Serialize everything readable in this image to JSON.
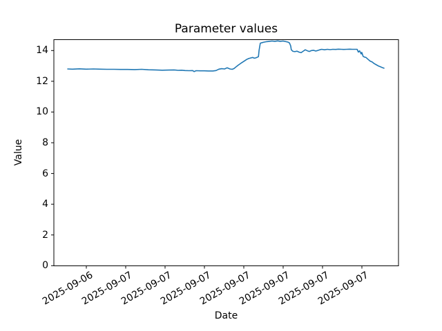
{
  "chart_data": {
    "type": "line",
    "title": "Parameter values",
    "xlabel": "Date",
    "ylabel": "Value",
    "x_tick_labels": [
      "2025-09-06",
      "2025-09-07",
      "2025-09-07",
      "2025-09-07",
      "2025-09-07",
      "2025-09-07",
      "2025-09-07",
      "2025-09-07"
    ],
    "y_tick_labels": [
      "0",
      "2",
      "4",
      "6",
      "8",
      "10",
      "12",
      "14"
    ],
    "ylim": [
      0,
      14.7
    ],
    "grid": false,
    "legend": "none",
    "series": [
      {
        "name": "parameter-values",
        "color": "#1f77b4",
        "points": [
          [
            0.0,
            12.8
          ],
          [
            0.015,
            12.79
          ],
          [
            0.037,
            12.81
          ],
          [
            0.059,
            12.79
          ],
          [
            0.081,
            12.8
          ],
          [
            0.103,
            12.79
          ],
          [
            0.124,
            12.78
          ],
          [
            0.146,
            12.78
          ],
          [
            0.168,
            12.77
          ],
          [
            0.19,
            12.77
          ],
          [
            0.212,
            12.76
          ],
          [
            0.234,
            12.78
          ],
          [
            0.255,
            12.75
          ],
          [
            0.277,
            12.74
          ],
          [
            0.299,
            12.72
          ],
          [
            0.321,
            12.73
          ],
          [
            0.336,
            12.74
          ],
          [
            0.349,
            12.71
          ],
          [
            0.36,
            12.72
          ],
          [
            0.371,
            12.7
          ],
          [
            0.384,
            12.69
          ],
          [
            0.395,
            12.7
          ],
          [
            0.4,
            12.63
          ],
          [
            0.406,
            12.69
          ],
          [
            0.419,
            12.68
          ],
          [
            0.432,
            12.68
          ],
          [
            0.445,
            12.67
          ],
          [
            0.459,
            12.67
          ],
          [
            0.469,
            12.7
          ],
          [
            0.478,
            12.79
          ],
          [
            0.487,
            12.82
          ],
          [
            0.496,
            12.8
          ],
          [
            0.504,
            12.88
          ],
          [
            0.513,
            12.8
          ],
          [
            0.52,
            12.78
          ],
          [
            0.526,
            12.83
          ],
          [
            0.533,
            12.95
          ],
          [
            0.539,
            13.05
          ],
          [
            0.548,
            13.18
          ],
          [
            0.557,
            13.3
          ],
          [
            0.566,
            13.42
          ],
          [
            0.572,
            13.48
          ],
          [
            0.579,
            13.52
          ],
          [
            0.585,
            13.55
          ],
          [
            0.59,
            13.5
          ],
          [
            0.594,
            13.52
          ],
          [
            0.598,
            13.55
          ],
          [
            0.603,
            13.6
          ],
          [
            0.605,
            14.0
          ],
          [
            0.609,
            14.48
          ],
          [
            0.616,
            14.52
          ],
          [
            0.622,
            14.55
          ],
          [
            0.629,
            14.58
          ],
          [
            0.638,
            14.6
          ],
          [
            0.646,
            14.62
          ],
          [
            0.655,
            14.6
          ],
          [
            0.664,
            14.63
          ],
          [
            0.672,
            14.6
          ],
          [
            0.681,
            14.62
          ],
          [
            0.69,
            14.58
          ],
          [
            0.696,
            14.55
          ],
          [
            0.701,
            14.5
          ],
          [
            0.705,
            14.3
          ],
          [
            0.707,
            14.05
          ],
          [
            0.712,
            13.95
          ],
          [
            0.718,
            13.93
          ],
          [
            0.725,
            13.96
          ],
          [
            0.731,
            13.9
          ],
          [
            0.738,
            13.86
          ],
          [
            0.744,
            13.95
          ],
          [
            0.751,
            14.05
          ],
          [
            0.758,
            13.98
          ],
          [
            0.764,
            13.94
          ],
          [
            0.771,
            14.0
          ],
          [
            0.777,
            14.02
          ],
          [
            0.784,
            13.97
          ],
          [
            0.79,
            14.0
          ],
          [
            0.797,
            14.05
          ],
          [
            0.803,
            14.08
          ],
          [
            0.812,
            14.05
          ],
          [
            0.821,
            14.08
          ],
          [
            0.83,
            14.06
          ],
          [
            0.838,
            14.08
          ],
          [
            0.847,
            14.07
          ],
          [
            0.856,
            14.09
          ],
          [
            0.865,
            14.08
          ],
          [
            0.873,
            14.07
          ],
          [
            0.882,
            14.08
          ],
          [
            0.891,
            14.09
          ],
          [
            0.9,
            14.08
          ],
          [
            0.908,
            14.08
          ],
          [
            0.915,
            14.08
          ],
          [
            0.919,
            13.9
          ],
          [
            0.923,
            13.98
          ],
          [
            0.928,
            13.78
          ],
          [
            0.93,
            13.88
          ],
          [
            0.934,
            13.62
          ],
          [
            0.939,
            13.57
          ],
          [
            0.943,
            13.55
          ],
          [
            0.95,
            13.42
          ],
          [
            0.956,
            13.32
          ],
          [
            0.963,
            13.25
          ],
          [
            0.969,
            13.15
          ],
          [
            0.976,
            13.07
          ],
          [
            0.982,
            13.0
          ],
          [
            0.989,
            12.94
          ],
          [
            0.996,
            12.88
          ],
          [
            1.0,
            12.85
          ]
        ]
      }
    ]
  }
}
